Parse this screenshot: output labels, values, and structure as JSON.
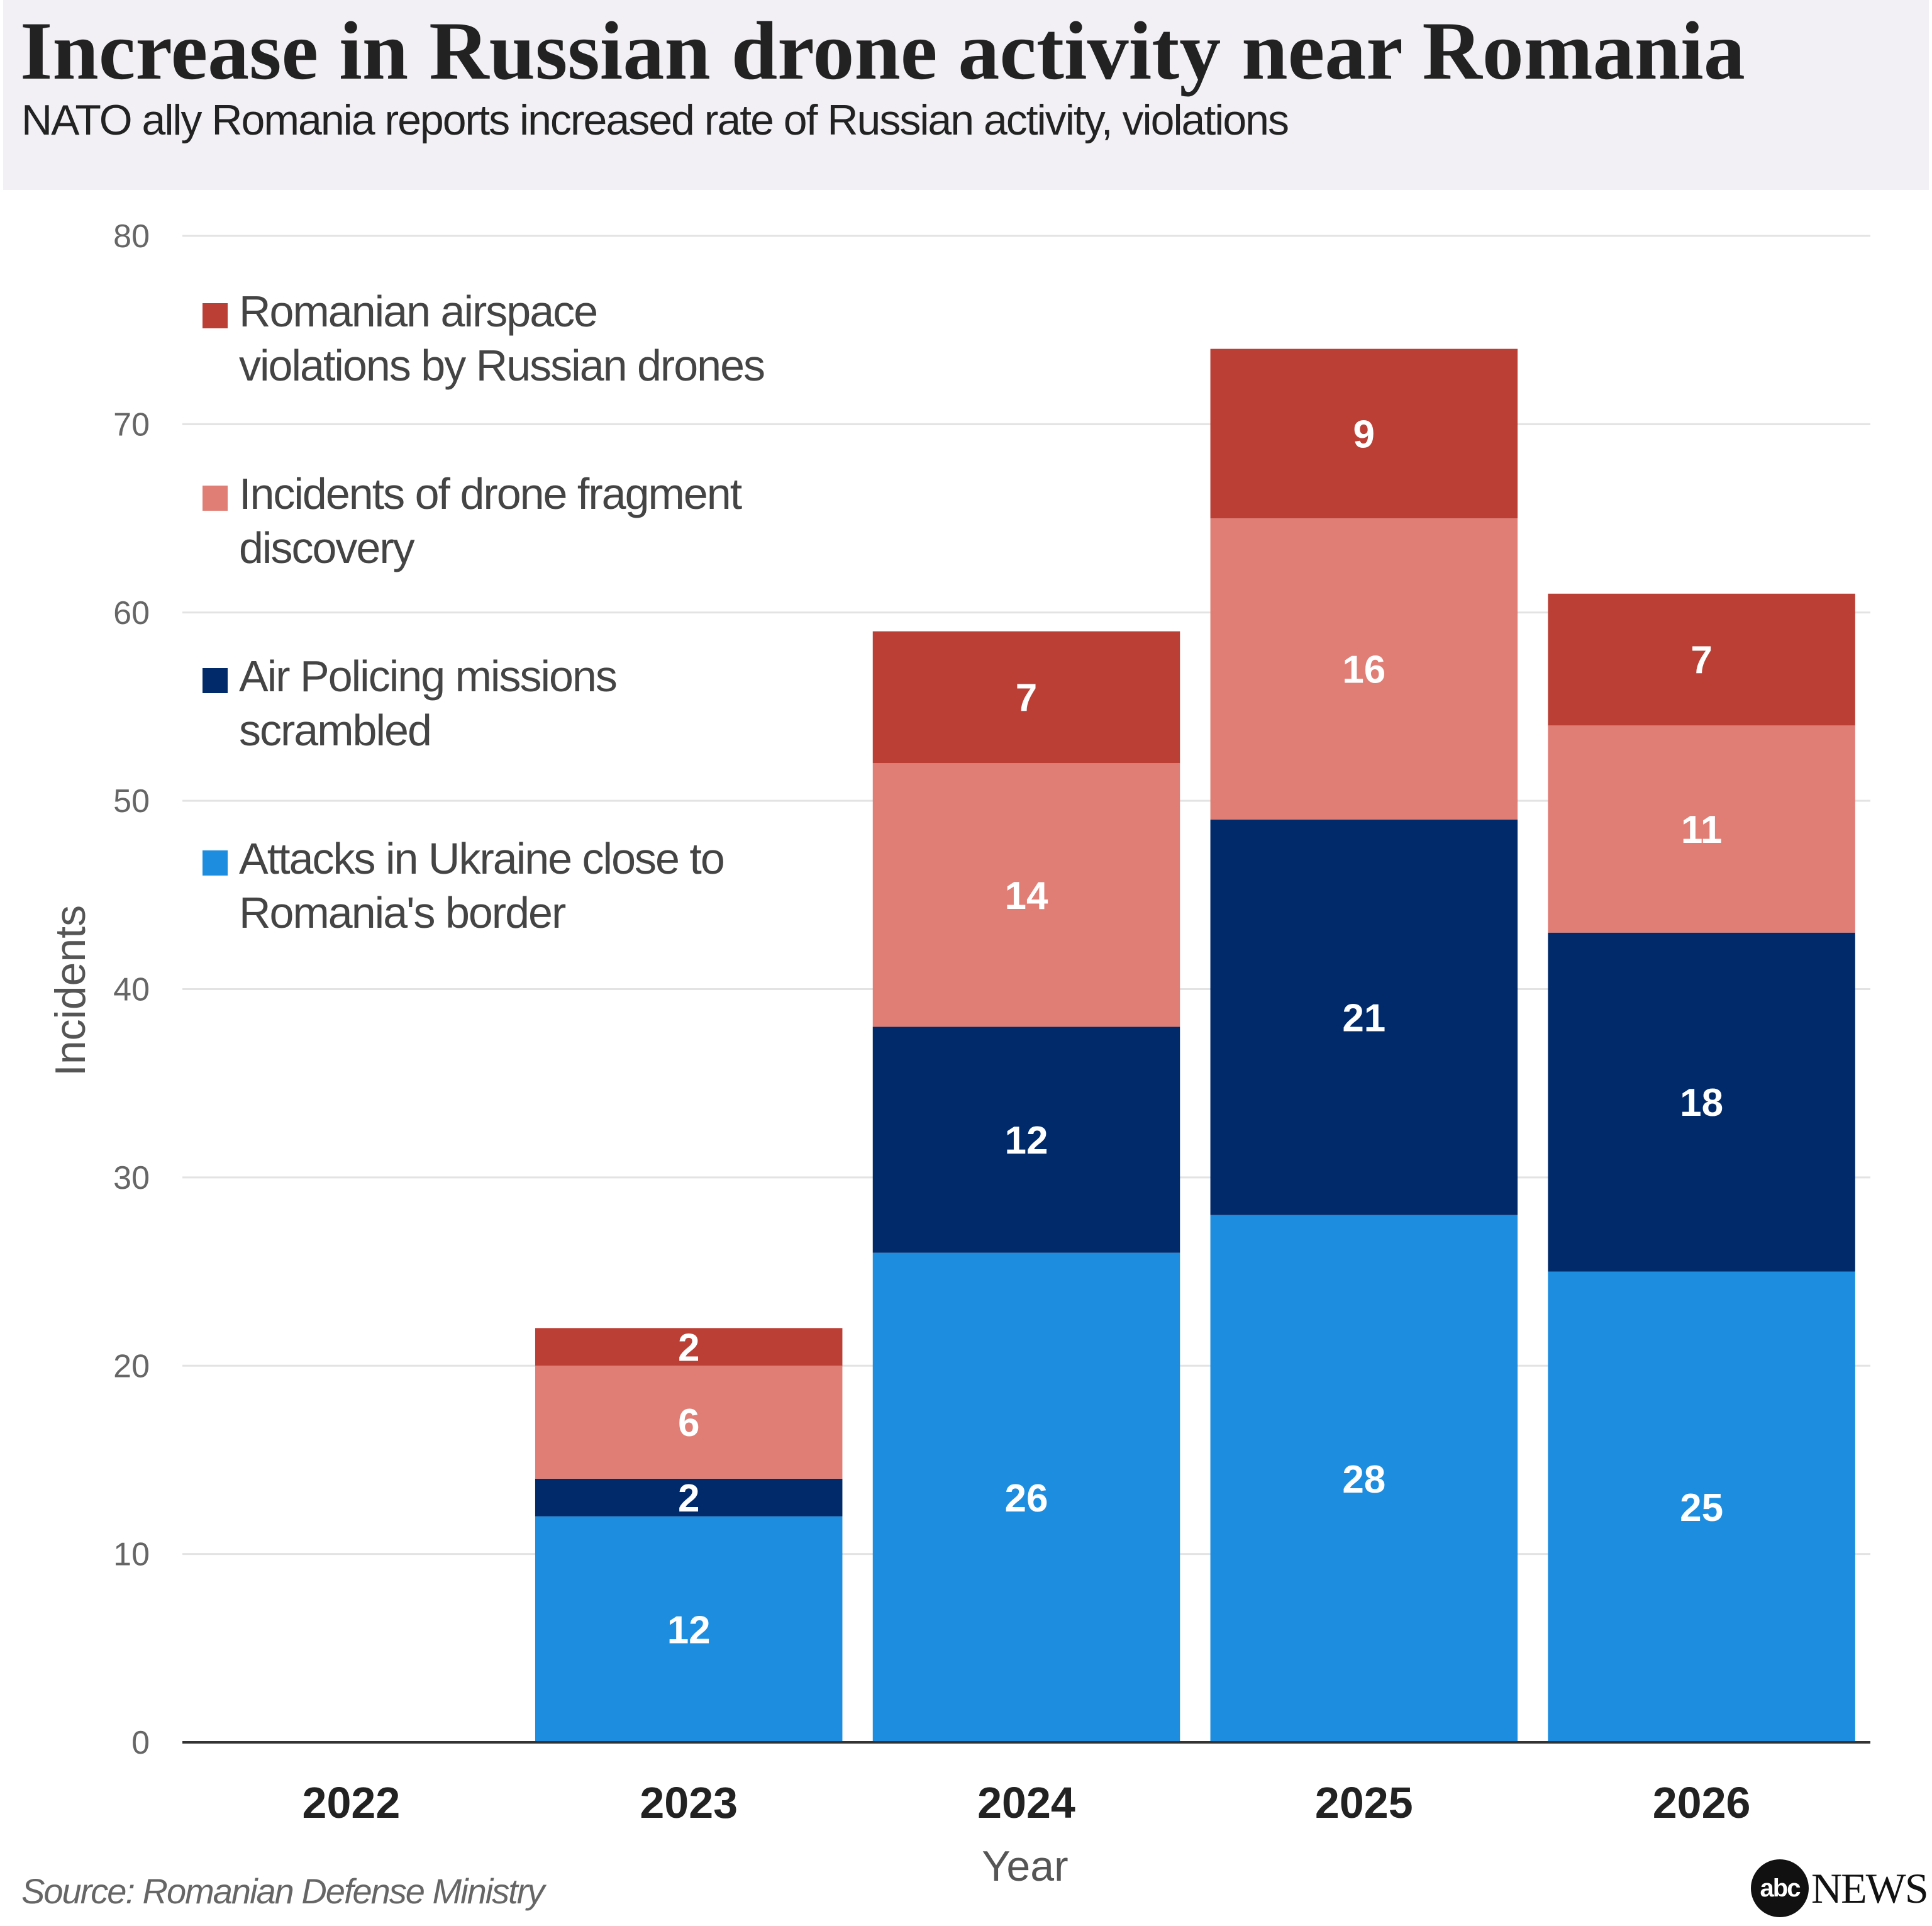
{
  "header": {
    "title": "Increase in Russian drone activity near Romania",
    "subtitle": "NATO ally Romania reports increased rate of Russian activity, violations"
  },
  "chart_data": {
    "type": "bar",
    "stacked": true,
    "categories": [
      "2022",
      "2023",
      "2024",
      "2025",
      "2026"
    ],
    "series": [
      {
        "name": "Attacks in Ukraine close to Romania's border",
        "color": "#1c8ddf",
        "values": [
          0,
          12,
          26,
          28,
          25
        ]
      },
      {
        "name": "Air Policing missions scrambled",
        "color": "#012a6b",
        "values": [
          0,
          2,
          12,
          21,
          18
        ]
      },
      {
        "name": "Incidents of drone fragment discovery",
        "color": "#e07e76",
        "values": [
          0,
          6,
          14,
          16,
          11
        ]
      },
      {
        "name": "Romanian airspace violations by Russian drones",
        "color": "#bb3f35",
        "values": [
          0,
          2,
          7,
          9,
          7
        ]
      }
    ],
    "xlabel": "Year",
    "ylabel": "Incidents",
    "ylim": [
      0,
      80
    ],
    "yticks": [
      0,
      10,
      20,
      30,
      40,
      50,
      60,
      70,
      80
    ],
    "grid": true,
    "legend_position": "top-left"
  },
  "legend": {
    "items": [
      {
        "label": "Romanian airspace\nviolations by Russian drones",
        "color": "#bb3f35"
      },
      {
        "label": "Incidents of drone fragment\ndiscovery",
        "color": "#e07e76"
      },
      {
        "label": "Air Policing missions\nscrambled",
        "color": "#012a6b"
      },
      {
        "label": "Attacks in Ukraine close to\nRomania's border",
        "color": "#1c8ddf"
      }
    ]
  },
  "footer": {
    "source": "Source: Romanian Defense Ministry",
    "logo_badge": "abc",
    "logo_word": "NEWS"
  }
}
